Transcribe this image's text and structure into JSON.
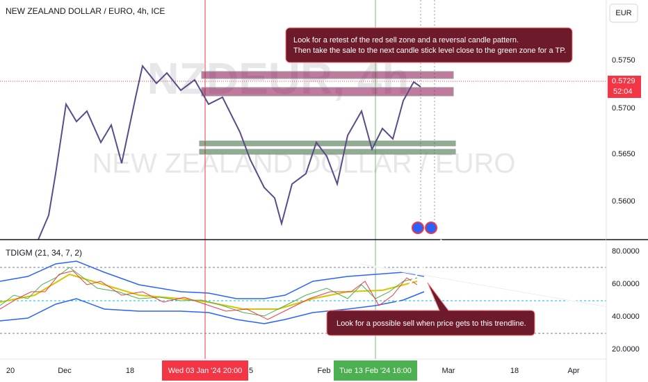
{
  "header": {
    "symbol": "NEW ZEALAND DOLLAR / EURO, 4h, ICE",
    "currency_button": "EUR"
  },
  "watermark": {
    "ticker": "NZDEUR, 4h",
    "name": "NEW ZEALAND DOLLAR / EURO"
  },
  "annotations": [
    {
      "lines": [
        "Look for a retest of the red sell zone and a reversal candle pattern.",
        "Then take the sale to the next candle stick level close to the green zone for a TP."
      ]
    },
    {
      "lines": [
        "Look for a possible sell when price gets to this trendline."
      ]
    }
  ],
  "price_axis": {
    "labels": [
      "0.5750",
      "0.5700",
      "0.5650",
      "0.5600"
    ],
    "current_price": "0.5729",
    "countdown": "52:04"
  },
  "indicator": {
    "name": "TDIGM (21, 34, 7, 2)",
    "axis_labels": [
      "80.0000",
      "60.0000",
      "40.0000",
      "20.0000"
    ]
  },
  "time_axis": {
    "labels": [
      "20",
      "Dec",
      "18",
      "5",
      "Feb",
      "Mar",
      "18",
      "Apr"
    ],
    "crosshair_red": "Wed 03 Jan '24  20:00",
    "crosshair_green": "Tue 13 Feb '24  16:00"
  }
}
